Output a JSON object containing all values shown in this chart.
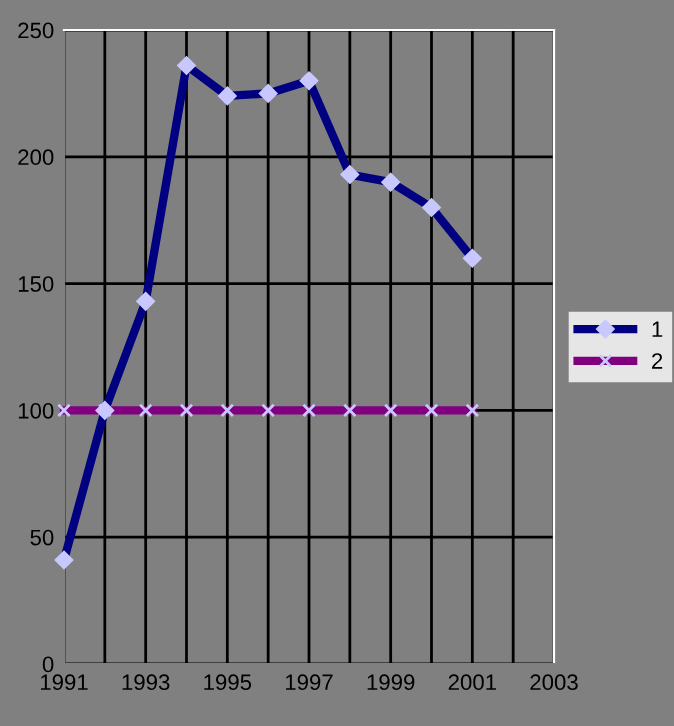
{
  "chart_data": {
    "type": "line",
    "x": [
      1991,
      1992,
      1993,
      1994,
      1995,
      1996,
      1997,
      1998,
      1999,
      2000,
      2001
    ],
    "series": [
      {
        "name": "1",
        "color": "#000080",
        "marker": "diamond",
        "values": [
          41,
          100,
          143,
          236,
          224,
          225,
          230,
          193,
          190,
          180,
          160
        ]
      },
      {
        "name": "2",
        "color": "#800080",
        "marker": "cross",
        "values": [
          100,
          100,
          100,
          100,
          100,
          100,
          100,
          100,
          100,
          100,
          100
        ]
      }
    ],
    "xlim": [
      1991,
      2003
    ],
    "xticks": [
      1991,
      {
        "value": 1992,
        "label": null
      },
      1993,
      {
        "value": 1994,
        "label": null
      },
      1995,
      {
        "value": 1996,
        "label": null
      },
      1997,
      {
        "value": 1998,
        "label": null
      },
      1999,
      {
        "value": 2000,
        "label": null
      },
      2001,
      {
        "value": 2002,
        "label": null
      },
      2003
    ],
    "ylim": [
      0,
      250
    ],
    "yticks": [
      0,
      50,
      100,
      150,
      200,
      250
    ],
    "grid": true,
    "legend": "right",
    "line_style": "solid"
  }
}
